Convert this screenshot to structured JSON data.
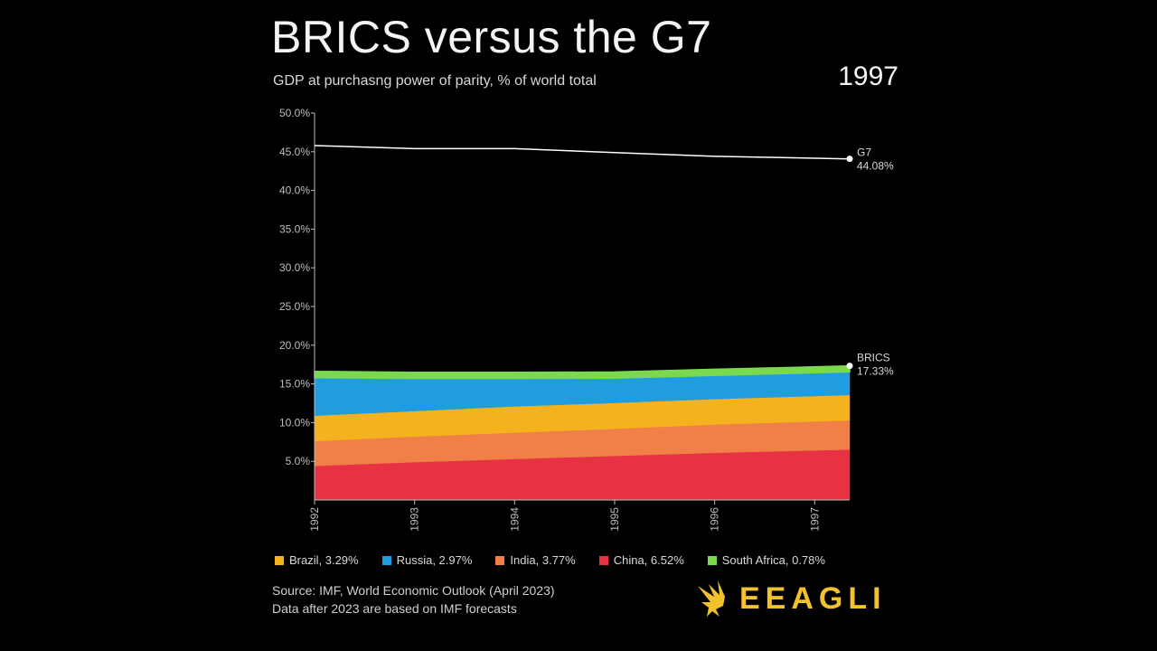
{
  "header": {
    "title": "BRICS versus the G7",
    "subtitle": "GDP at purchasng power of parity, % of world total",
    "year": "1997"
  },
  "colors": {
    "background": "#000000",
    "g7_line": "#ffffff",
    "brazil": "#f5b21f",
    "russia": "#1f9de0",
    "india": "#f07f48",
    "china": "#e63243",
    "south_africa": "#7bd94f"
  },
  "chart_data": {
    "type": "area",
    "x": [
      1992,
      1993,
      1994,
      1995,
      1996,
      1997.35
    ],
    "x_tick_labels": [
      "1992",
      "1993",
      "1994",
      "1995",
      "1996",
      "1997"
    ],
    "y_tick_labels": [
      "5.0%",
      "10.0%",
      "15.0%",
      "20.0%",
      "25.0%",
      "30.0%",
      "35.0%",
      "40.0%",
      "45.0%",
      "50.0%"
    ],
    "ylim": [
      0,
      50
    ],
    "stack_order": [
      "China",
      "India",
      "Brazil",
      "Russia",
      "South Africa"
    ],
    "series": [
      {
        "name": "China",
        "color": "#e63243",
        "values": [
          4.4,
          4.9,
          5.3,
          5.7,
          6.1,
          6.52
        ]
      },
      {
        "name": "India",
        "color": "#f07f48",
        "values": [
          3.2,
          3.3,
          3.4,
          3.5,
          3.65,
          3.77
        ]
      },
      {
        "name": "Brazil",
        "color": "#f5b21f",
        "values": [
          3.3,
          3.3,
          3.4,
          3.35,
          3.3,
          3.29
        ]
      },
      {
        "name": "Russia",
        "color": "#1f9de0",
        "values": [
          4.9,
          4.2,
          3.6,
          3.2,
          3.05,
          2.97
        ]
      },
      {
        "name": "South Africa",
        "color": "#7bd94f",
        "values": [
          0.82,
          0.8,
          0.8,
          0.79,
          0.79,
          0.78
        ]
      }
    ],
    "g7": {
      "name": "G7",
      "values": [
        45.8,
        45.4,
        45.4,
        44.9,
        44.4,
        44.08
      ],
      "end_label": "G7",
      "end_value_label": "44.08%"
    },
    "brics": {
      "end_label": "BRICS",
      "end_value_label": "17.33%"
    }
  },
  "legend": {
    "items": [
      {
        "label": "Brazil, 3.29%",
        "color": "#f5b21f"
      },
      {
        "label": "Russia, 2.97%",
        "color": "#1f9de0"
      },
      {
        "label": "India, 3.77%",
        "color": "#f07f48"
      },
      {
        "label": "China, 6.52%",
        "color": "#e63243"
      },
      {
        "label": "South Africa, 0.78%",
        "color": "#7bd94f"
      }
    ]
  },
  "footer": {
    "source_line1": "Source: IMF, World Economic Outlook (April 2023)",
    "source_line2": "Data after 2023 are based on IMF forecasts",
    "logo_text": "EEAGLI"
  }
}
